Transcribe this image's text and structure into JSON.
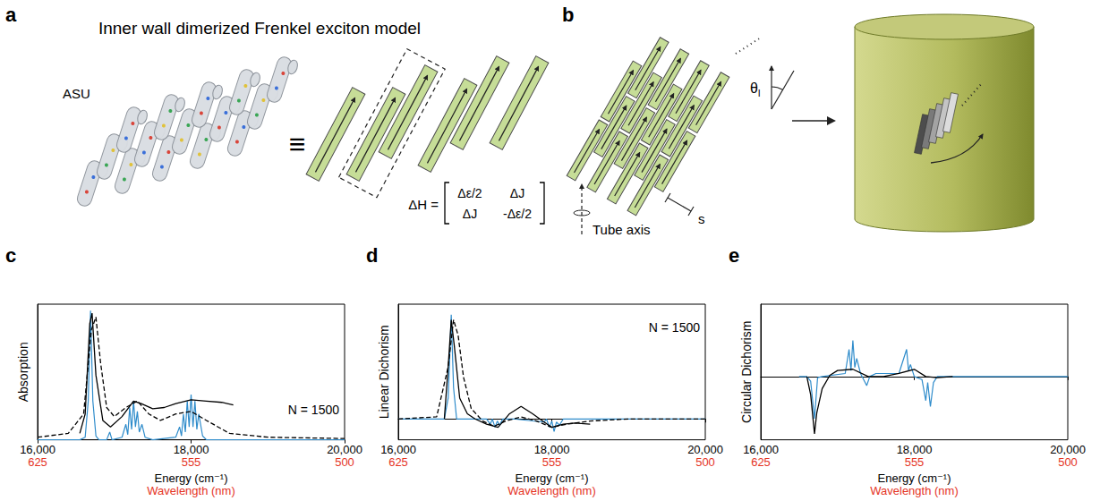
{
  "diagrams": {
    "a": {
      "letter": "a",
      "title": "Inner wall dimerized Frenkel exciton model",
      "asu_label": "ASU",
      "equiv": "≡",
      "matrix_label": "ΔH =",
      "matrix": [
        [
          "Δε/2",
          "ΔJ"
        ],
        [
          "ΔJ",
          "-Δε/2"
        ]
      ]
    },
    "b": {
      "letter": "b",
      "angle_symbol": "θ",
      "angle_subscript": "l",
      "axis_label": "Tube axis",
      "spacing_label": "s"
    }
  },
  "chart_data": [
    {
      "type": "line",
      "label": "c",
      "ylabel": "Absorption",
      "xlabel": "Energy (cm⁻¹)",
      "x2label": "Wavelength (nm)",
      "annotation": "N = 1500",
      "tick_labels": "x",
      "xlim": [
        16000,
        20000
      ],
      "xticks": [
        {
          "value": 16000,
          "label": "16,000"
        },
        {
          "value": 18000,
          "label": "18,000"
        },
        {
          "value": 20000,
          "label": "20,000"
        }
      ],
      "x2ticks": [
        {
          "value": 16000,
          "label": "625"
        },
        {
          "value": 18000,
          "label": "555"
        },
        {
          "value": 20000,
          "label": "500"
        }
      ],
      "ylim": [
        0,
        1.05
      ],
      "yticks": [],
      "series": [
        {
          "color": "#2f8ccb",
          "line_style": "solid",
          "x": [
            16000,
            16550,
            16620,
            16660,
            16690,
            16720,
            16760,
            16800,
            16900,
            16940,
            16970,
            17100,
            17150,
            17175,
            17200,
            17225,
            17250,
            17275,
            17300,
            17325,
            17360,
            17400,
            17500,
            17800,
            17850,
            17875,
            17900,
            17925,
            17950,
            17975,
            18000,
            18025,
            18050,
            18075,
            18100,
            18150,
            18200,
            20000
          ],
          "values": [
            0,
            0,
            0.02,
            0.3,
            1.0,
            0.3,
            0.03,
            0,
            0,
            0.06,
            0,
            0.02,
            0.12,
            0.04,
            0.25,
            0.08,
            0.3,
            0.1,
            0.22,
            0.06,
            0.12,
            0.02,
            0,
            0.02,
            0.1,
            0.03,
            0.2,
            0.06,
            0.3,
            0.1,
            0.35,
            0.1,
            0.3,
            0.08,
            0.2,
            0.03,
            0,
            0
          ]
        },
        {
          "color": "#000000",
          "line_style": "solid",
          "x": [
            16550,
            16620,
            16680,
            16710,
            16760,
            16850,
            16950,
            17100,
            17250,
            17350,
            17500,
            17650,
            17800,
            18000,
            18200,
            18400,
            18550
          ],
          "values": [
            0.05,
            0.2,
            0.9,
            0.98,
            0.5,
            0.15,
            0.1,
            0.18,
            0.3,
            0.28,
            0.24,
            0.25,
            0.28,
            0.31,
            0.3,
            0.29,
            0.27
          ]
        },
        {
          "color": "#000000",
          "line_style": "dashed",
          "x": [
            16000,
            16400,
            16600,
            16700,
            16760,
            16820,
            16900,
            17000,
            17150,
            17300,
            17450,
            17600,
            17800,
            18000,
            18200,
            18500,
            19000,
            20000
          ],
          "values": [
            0.02,
            0.05,
            0.2,
            0.85,
            0.95,
            0.6,
            0.25,
            0.18,
            0.25,
            0.3,
            0.2,
            0.15,
            0.2,
            0.22,
            0.15,
            0.05,
            0.02,
            0.01
          ]
        }
      ]
    },
    {
      "type": "line",
      "label": "d",
      "ylabel": "Linear Dichorism",
      "xlabel": "Energy (cm⁻¹)",
      "x2label": "Wavelength (nm)",
      "annotation": "N = 1500",
      "tick_labels": "x",
      "xlim": [
        16000,
        20000
      ],
      "xticks": [
        {
          "value": 16000,
          "label": "16,000"
        },
        {
          "value": 18000,
          "label": "18,000"
        },
        {
          "value": 20000,
          "label": "20,000"
        }
      ],
      "x2ticks": [
        {
          "value": 16000,
          "label": "625"
        },
        {
          "value": 18000,
          "label": "555"
        },
        {
          "value": 20000,
          "label": "500"
        }
      ],
      "ylim": [
        -0.2,
        1.1
      ],
      "yticks": [],
      "series": [
        {
          "color": "#2f8ccb",
          "line_style": "solid",
          "x": [
            16000,
            16600,
            16650,
            16690,
            16720,
            16760,
            17150,
            17200,
            17225,
            17260,
            17290,
            17320,
            17360,
            17500,
            17900,
            17930,
            17970,
            18000,
            18030,
            18060,
            18100,
            18150,
            20000
          ],
          "values": [
            0,
            0,
            0.2,
            1.0,
            0.3,
            0,
            0,
            -0.05,
            0,
            -0.08,
            -0.02,
            -0.06,
            0,
            0,
            -0.03,
            0,
            -0.08,
            -0.02,
            -0.12,
            -0.03,
            -0.06,
            0,
            0
          ]
        },
        {
          "color": "#000000",
          "line_style": "solid",
          "x": [
            16600,
            16650,
            16690,
            16730,
            16800,
            16900,
            17000,
            17150,
            17300,
            17450,
            17600,
            17750,
            17900,
            18000,
            18150,
            18300,
            18500
          ],
          "values": [
            0,
            0.5,
            0.95,
            0.7,
            0.2,
            0.05,
            0,
            -0.05,
            -0.08,
            0.05,
            0.12,
            0.05,
            -0.03,
            -0.08,
            -0.05,
            -0.04,
            -0.05
          ]
        },
        {
          "color": "#000000",
          "line_style": "dashed",
          "x": [
            16000,
            16500,
            16650,
            16720,
            16780,
            16850,
            16950,
            17100,
            17250,
            17400,
            17600,
            17800,
            18000,
            18200,
            18500,
            19000,
            20000
          ],
          "values": [
            0,
            0.02,
            0.5,
            0.95,
            0.8,
            0.4,
            0.1,
            -0.02,
            -0.07,
            -0.02,
            0.02,
            -0.02,
            -0.08,
            -0.05,
            -0.02,
            0,
            0
          ]
        }
      ]
    },
    {
      "type": "line",
      "label": "e",
      "ylabel": "Circular Dichorism",
      "xlabel": "Energy (cm⁻¹)",
      "x2label": "Wavelength (nm)",
      "tick_labels": "x",
      "xlim": [
        16000,
        20000
      ],
      "xticks": [
        {
          "value": 16000,
          "label": "16,000"
        },
        {
          "value": 18000,
          "label": "18,000"
        },
        {
          "value": 20000,
          "label": "20,000"
        }
      ],
      "x2ticks": [
        {
          "value": 16000,
          "label": "625"
        },
        {
          "value": 18000,
          "label": "555"
        },
        {
          "value": 20000,
          "label": "500"
        }
      ],
      "ylim": [
        -1.05,
        1.2
      ],
      "yticks": [],
      "series": [
        {
          "color": "#2f8ccb",
          "line_style": "solid",
          "x": [
            16500,
            16600,
            16650,
            16700,
            16740,
            16800,
            17100,
            17150,
            17175,
            17200,
            17225,
            17250,
            17300,
            17380,
            17420,
            17500,
            17800,
            17850,
            17900,
            17925,
            17950,
            18000,
            18100,
            18150,
            18175,
            18210,
            18250,
            18300,
            20000
          ],
          "values": [
            0,
            0,
            -0.08,
            -0.7,
            -0.02,
            0,
            0.05,
            0.45,
            0.1,
            0.6,
            0.15,
            0.3,
            0.05,
            -0.15,
            0,
            0.05,
            0.05,
            0.25,
            0.45,
            0.1,
            0.2,
            0,
            -0.05,
            -0.4,
            -0.1,
            -0.5,
            -0.1,
            0,
            0
          ]
        },
        {
          "color": "#000000",
          "line_style": "solid",
          "x": [
            16600,
            16650,
            16700,
            16730,
            16800,
            16900,
            17000,
            17200,
            17400,
            17600,
            17800,
            18000,
            18150,
            18300,
            18500
          ],
          "values": [
            0,
            -0.3,
            -0.95,
            -0.6,
            -0.2,
            0.02,
            0.1,
            0.12,
            0,
            0,
            0.05,
            0.12,
            0,
            -0.02,
            0
          ]
        }
      ]
    }
  ]
}
